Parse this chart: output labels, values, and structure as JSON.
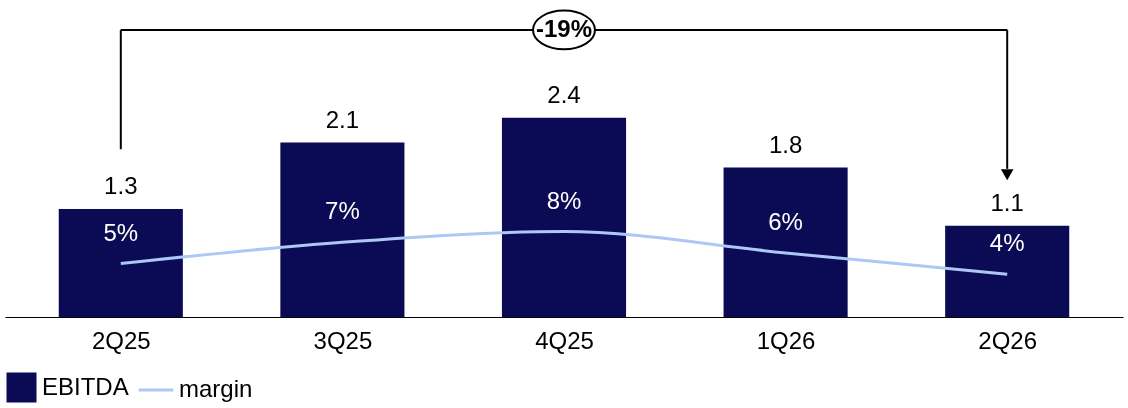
{
  "chart_data": {
    "type": "bar",
    "categories": [
      "2Q25",
      "3Q25",
      "4Q25",
      "1Q26",
      "2Q26"
    ],
    "series": [
      {
        "name": "EBITDA",
        "color": "#0b0b55",
        "values": [
          1.3,
          2.1,
          2.4,
          1.8,
          1.1
        ]
      },
      {
        "name": "margin",
        "type": "line",
        "axis": "y2",
        "color": "#adc8f5",
        "values": [
          5,
          7,
          8,
          6,
          4
        ],
        "value_labels": [
          "5%",
          "7%",
          "8%",
          "6%",
          "4%"
        ]
      }
    ],
    "data_labels": true,
    "tick_labels": "x",
    "grid": false,
    "legend": "bottom",
    "annotations": [
      "-19%"
    ]
  }
}
